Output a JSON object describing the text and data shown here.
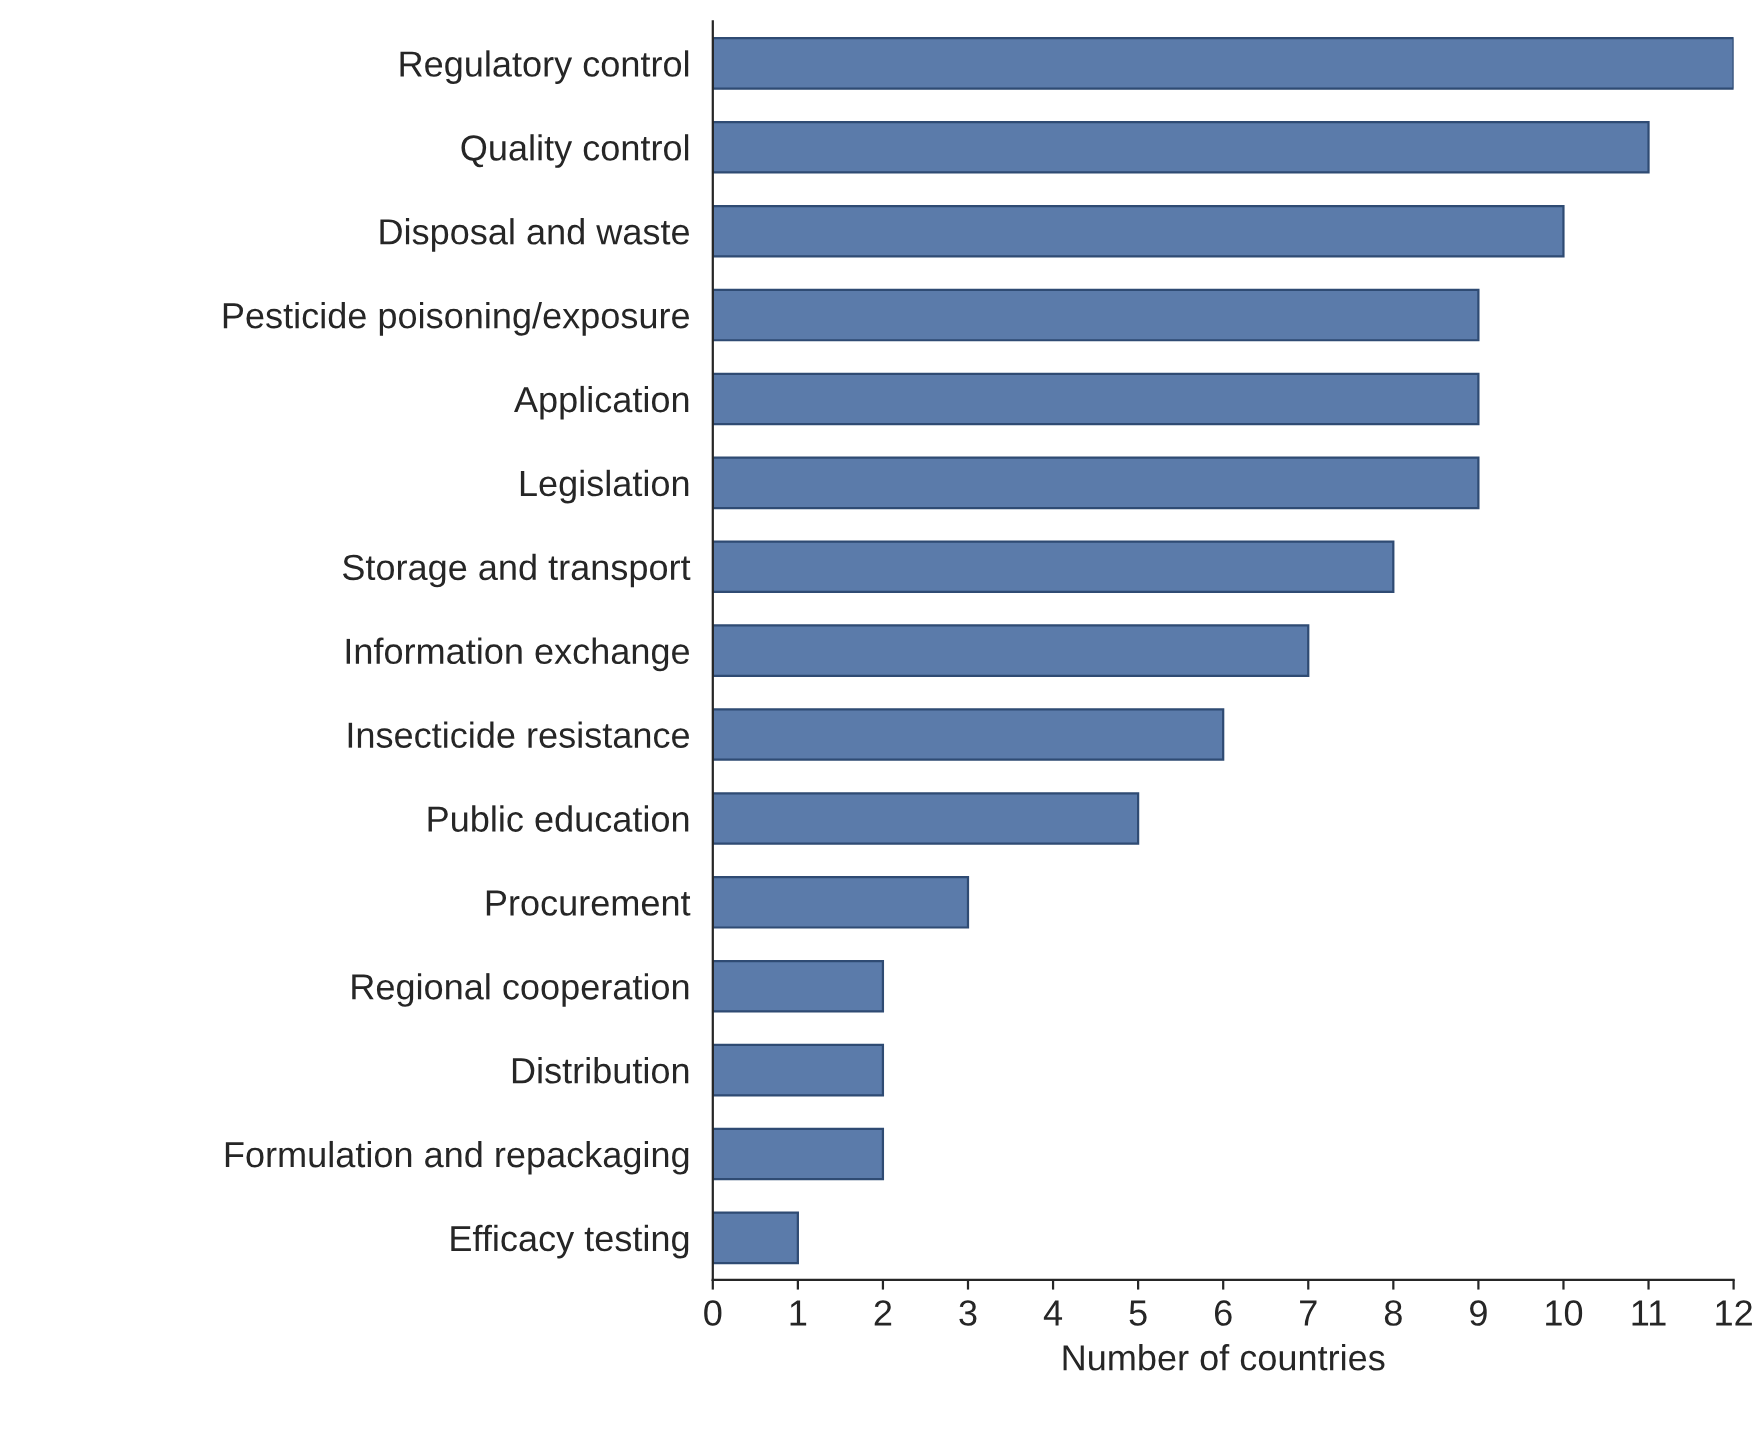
{
  "chart_data": {
    "type": "bar",
    "orientation": "horizontal",
    "xlabel": "Number of countries",
    "categories": [
      "Regulatory control",
      "Quality control",
      "Disposal and waste",
      "Pesticide poisoning/exposure",
      "Application",
      "Legislation",
      "Storage and transport",
      "Information exchange",
      "Insecticide resistance",
      "Public education",
      "Procurement",
      "Regional cooperation",
      "Distribution",
      "Formulation and repackaging",
      "Efficacy testing"
    ],
    "values": [
      12,
      11,
      10,
      9,
      9,
      9,
      8,
      7,
      6,
      5,
      3,
      2,
      2,
      2,
      1
    ],
    "color": "#5b7baa",
    "xlim": [
      0,
      12
    ],
    "xticks": [
      0,
      1,
      2,
      3,
      4,
      5,
      6,
      7,
      8,
      9,
      10,
      11,
      12
    ],
    "grid": false,
    "legend": false
  }
}
